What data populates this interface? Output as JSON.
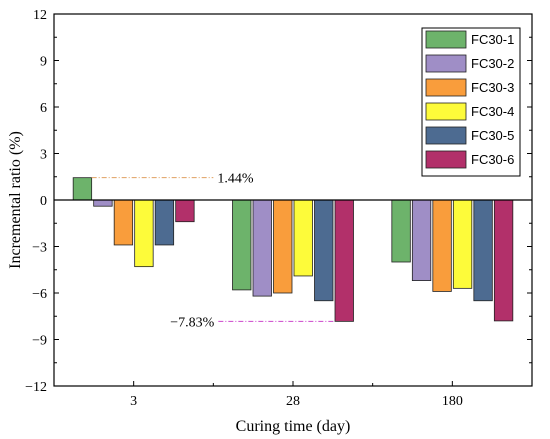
{
  "chart_data": {
    "type": "bar",
    "xlabel": "Curing time (day)",
    "ylabel": "Incremental ratio (%)",
    "categories": [
      "3",
      "28",
      "180"
    ],
    "ylim": [
      -12,
      12
    ],
    "yticks": [
      -12,
      -9,
      -6,
      -3,
      0,
      3,
      6,
      9,
      12
    ],
    "grid": false,
    "legend_position": "top-right",
    "series": [
      {
        "name": "FC30-1",
        "color": "#6db36b",
        "values": [
          1.44,
          -5.8,
          -4.0
        ]
      },
      {
        "name": "FC30-2",
        "color": "#9f8ec6",
        "values": [
          -0.4,
          -6.2,
          -5.2
        ]
      },
      {
        "name": "FC30-3",
        "color": "#f99d3c",
        "values": [
          -2.9,
          -6.0,
          -5.9
        ]
      },
      {
        "name": "FC30-4",
        "color": "#fdfb3a",
        "values": [
          -4.3,
          -4.9,
          -5.7
        ]
      },
      {
        "name": "FC30-5",
        "color": "#4d6b91",
        "values": [
          -2.9,
          -6.5,
          -6.5
        ]
      },
      {
        "name": "FC30-6",
        "color": "#b2306a",
        "values": [
          -1.4,
          -7.83,
          -7.8
        ]
      }
    ],
    "annotations": [
      {
        "text": "1.44%",
        "value": 1.44,
        "series": "FC30-1",
        "category": "3",
        "line_color": "#e0a060"
      },
      {
        "text": "−7.83%",
        "value": -7.83,
        "series": "FC30-6",
        "category": "28",
        "line_color": "#cc44cc"
      }
    ]
  }
}
